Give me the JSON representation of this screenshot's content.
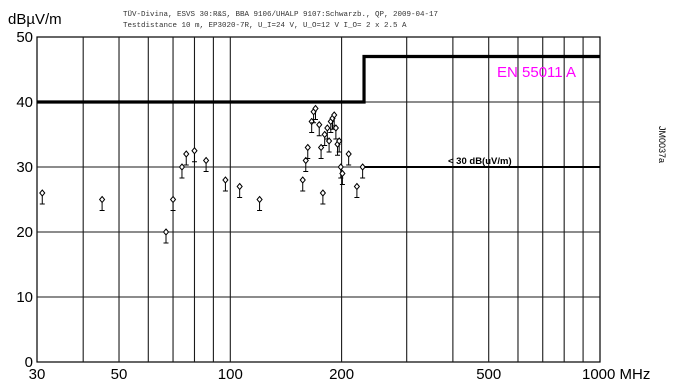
{
  "chart_data": {
    "type": "scatter",
    "title": "",
    "header_lines": [
      "TÜV-Divina, ESVS 30:R&S, BBA 9106/UHALP 9107:Schwarzb., QP, 2009-04-17",
      "Testdistance 10 m, EP3020-7R, U_I=24 V, U_O=12 V I_O= 2 x 2.5 A"
    ],
    "ylabel": "dBµV/m",
    "xunit": "MHz",
    "xscale": "log",
    "xlim": [
      30,
      1000
    ],
    "ylim": [
      0,
      50
    ],
    "x_tick_labels": [
      "30",
      "50",
      "100",
      "200",
      "500",
      "1000 MHz"
    ],
    "x_tick_values": [
      30,
      50,
      100,
      200,
      500,
      1000
    ],
    "y_tick_values": [
      0,
      10,
      20,
      30,
      40,
      50
    ],
    "grid_x": [
      40,
      50,
      60,
      70,
      80,
      90,
      100,
      200,
      300,
      400,
      500,
      600,
      700,
      800,
      900
    ],
    "grid_y": [
      10,
      20,
      30,
      40
    ],
    "limit_line": {
      "name": "EN 55011 A",
      "points": [
        [
          30,
          40
        ],
        [
          230,
          40
        ],
        [
          230,
          47
        ],
        [
          1000,
          47
        ]
      ],
      "color": "#ff00ff"
    },
    "reference_line": {
      "label": "< 30 dB(uV/m)",
      "points": [
        [
          230,
          30
        ],
        [
          1000,
          30
        ]
      ]
    },
    "side_label": "JM0037a",
    "measurements": {
      "x": [
        31,
        45,
        67,
        70,
        74,
        76,
        80,
        86,
        97,
        106,
        120,
        157,
        160,
        162,
        166,
        168,
        170,
        174,
        176,
        178,
        180,
        183,
        185,
        187,
        189,
        191,
        193,
        195,
        197,
        199,
        201,
        209,
        220,
        228
      ],
      "y": [
        26,
        25,
        20,
        25,
        30,
        32,
        32.5,
        31,
        28,
        27,
        25,
        28,
        31,
        33,
        37,
        38.5,
        39,
        36.5,
        33,
        26,
        35,
        36,
        34,
        37,
        37.5,
        38,
        36,
        33.5,
        34,
        30,
        29,
        32,
        27,
        30
      ]
    }
  }
}
